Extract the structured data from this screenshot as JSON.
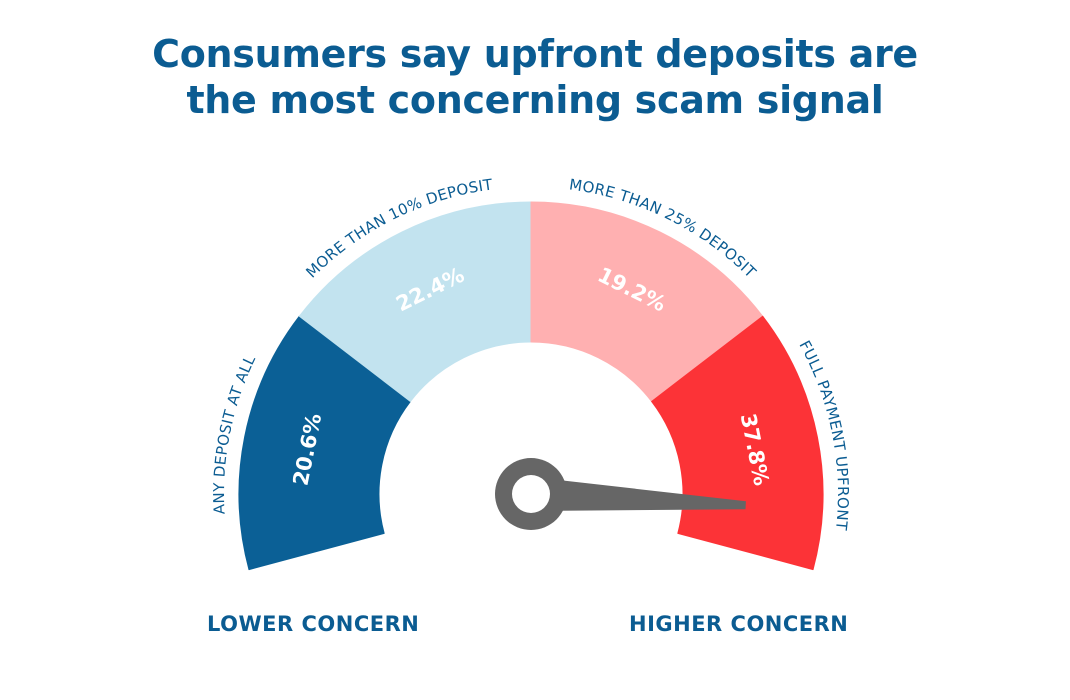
{
  "title": {
    "line1": "Consumers say upfront deposits are",
    "line2": "the most concerning scam signal"
  },
  "chart_data": {
    "type": "gauge",
    "categories": [
      "ANY DEPOSIT AT ALL",
      "MORE THAN 10% DEPOSIT",
      "MORE THAN 25% DEPOSIT",
      "FULL PAYMENT UPFRONT"
    ],
    "values": [
      20.6,
      22.4,
      19.2,
      37.8
    ],
    "value_labels": [
      "20.6%",
      "22.4%",
      "19.2%",
      "37.8%"
    ],
    "colors": [
      "#0b6096",
      "#c2e3ef",
      "#ffb0b1",
      "#fc3337"
    ],
    "needle_color": "#666666",
    "scale_labels": {
      "low": "LOWER CONCERN",
      "high": "HIGHER CONCERN"
    }
  }
}
